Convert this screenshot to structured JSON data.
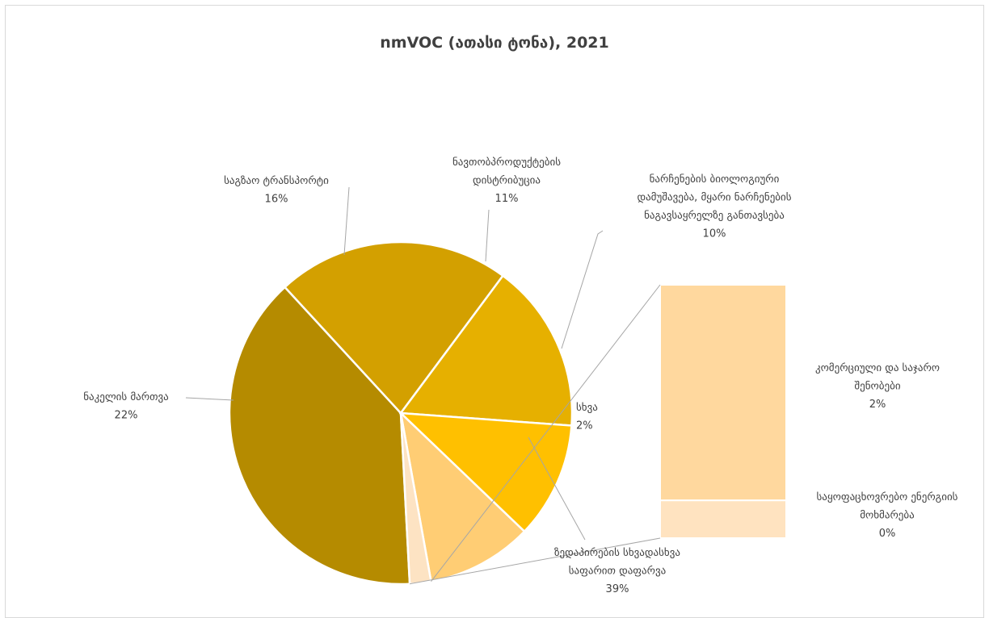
{
  "chart_data": {
    "type": "pie",
    "title": "nmVOC (ათასი ტონა), 2021",
    "slices": [
      {
        "label_lines": [
          "ზედაპირების სხვადასხვა",
          "საფარით დაფარვა"
        ],
        "pct": "39%",
        "value": 39,
        "color": "#b58b00"
      },
      {
        "label_lines": [
          "ნაკელის მართვა"
        ],
        "pct": "22%",
        "value": 22,
        "color": "#d3a000"
      },
      {
        "label_lines": [
          "საგზაო ტრანსპორტი"
        ],
        "pct": "16%",
        "value": 16,
        "color": "#e6b000"
      },
      {
        "label_lines": [
          "ნავთობპროდუქტების",
          "დისტრიბუცია"
        ],
        "pct": "11%",
        "value": 11,
        "color": "#ffc000"
      },
      {
        "label_lines": [
          "ნარჩენების ბიოლოგიური",
          "დამუშავება, მყარი ნარჩენების",
          "ნაგავსაყრელზე განთავსება"
        ],
        "pct": "10%",
        "value": 10,
        "color": "#ffcd74"
      },
      {
        "label_lines": [
          "სხვა"
        ],
        "pct": "2%",
        "value": 2,
        "color": "#fde3c3"
      }
    ],
    "breakdown": {
      "of_slice": "სხვა",
      "segments": [
        {
          "label_lines": [
            "კომერციული და საჯარო",
            "შენობები"
          ],
          "pct": "2%",
          "value": 2,
          "color": "#ffd89e"
        },
        {
          "label_lines": [
            "საყოფაცხოვრებო ენერგიის",
            "მოხმარება"
          ],
          "pct": "0%",
          "value": 0.35,
          "color": "#ffe3c0"
        }
      ]
    }
  }
}
